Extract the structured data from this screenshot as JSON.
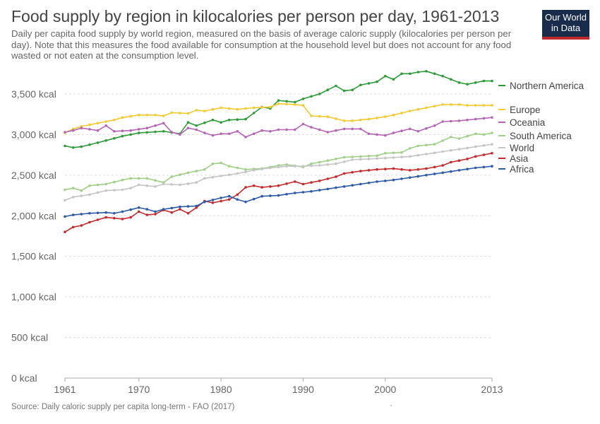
{
  "title": "Food supply by region in kilocalories per person per day, 1961-2013",
  "subtitle": "Daily per capita food supply by world region, measured on the basis of average caloric supply (kilocalories per person per day). Note that this measures the food available for consumption at the household level but does not account for any food wasted or not eaten at the consumption level.",
  "logo": {
    "line1": "Our World",
    "line2": "in Data"
  },
  "source": "Source: Daily caloric supply per capita long-term - FAO (2017)",
  "dot_note": "·",
  "chart_data": {
    "type": "line",
    "xlim": [
      1961,
      2013
    ],
    "ylim": [
      0,
      3700
    ],
    "x_ticks": [
      1961,
      1970,
      1980,
      1990,
      2000,
      2013
    ],
    "y_ticks": [
      0,
      500,
      1000,
      1500,
      2000,
      2500,
      3000,
      3500
    ],
    "y_tick_labels": [
      "0 kcal",
      "500 kcal",
      "1,000 kcal",
      "1,500 kcal",
      "2,000 kcal",
      "2,500 kcal",
      "3,000 kcal",
      "3,500 kcal"
    ],
    "grid": "horizontal dashed",
    "legend": "right, labels at line ends",
    "series": [
      {
        "name": "Northern America",
        "color": "#2e9a3a",
        "keypoints": [
          [
            1961,
            2860
          ],
          [
            1962,
            2840
          ],
          [
            1963,
            2850
          ],
          [
            1965,
            2900
          ],
          [
            1968,
            2980
          ],
          [
            1970,
            3020
          ],
          [
            1973,
            3040
          ],
          [
            1975,
            3010
          ],
          [
            1976,
            3150
          ],
          [
            1977,
            3110
          ],
          [
            1979,
            3180
          ],
          [
            1980,
            3150
          ],
          [
            1981,
            3180
          ],
          [
            1983,
            3190
          ],
          [
            1985,
            3340
          ],
          [
            1986,
            3320
          ],
          [
            1987,
            3420
          ],
          [
            1989,
            3400
          ],
          [
            1990,
            3440
          ],
          [
            1992,
            3500
          ],
          [
            1994,
            3600
          ],
          [
            1995,
            3540
          ],
          [
            1996,
            3550
          ],
          [
            1997,
            3610
          ],
          [
            1999,
            3650
          ],
          [
            2000,
            3720
          ],
          [
            2001,
            3680
          ],
          [
            2002,
            3750
          ],
          [
            2003,
            3750
          ],
          [
            2004,
            3770
          ],
          [
            2005,
            3780
          ],
          [
            2006,
            3750
          ],
          [
            2007,
            3720
          ],
          [
            2009,
            3640
          ],
          [
            2010,
            3620
          ],
          [
            2012,
            3660
          ],
          [
            2013,
            3660
          ]
        ]
      },
      {
        "name": "Europe",
        "color": "#f2cb32",
        "keypoints": [
          [
            1961,
            3020
          ],
          [
            1962,
            3070
          ],
          [
            1963,
            3100
          ],
          [
            1965,
            3140
          ],
          [
            1967,
            3180
          ],
          [
            1968,
            3210
          ],
          [
            1970,
            3240
          ],
          [
            1972,
            3240
          ],
          [
            1973,
            3230
          ],
          [
            1974,
            3270
          ],
          [
            1976,
            3260
          ],
          [
            1977,
            3300
          ],
          [
            1978,
            3290
          ],
          [
            1980,
            3330
          ],
          [
            1982,
            3310
          ],
          [
            1984,
            3330
          ],
          [
            1986,
            3340
          ],
          [
            1987,
            3380
          ],
          [
            1989,
            3370
          ],
          [
            1990,
            3360
          ],
          [
            1991,
            3230
          ],
          [
            1993,
            3220
          ],
          [
            1995,
            3170
          ],
          [
            1996,
            3170
          ],
          [
            1998,
            3190
          ],
          [
            2000,
            3220
          ],
          [
            2001,
            3240
          ],
          [
            2003,
            3290
          ],
          [
            2005,
            3330
          ],
          [
            2007,
            3370
          ],
          [
            2009,
            3370
          ],
          [
            2010,
            3360
          ],
          [
            2013,
            3360
          ]
        ]
      },
      {
        "name": "Oceania",
        "color": "#b466b4",
        "keypoints": [
          [
            1961,
            3030
          ],
          [
            1962,
            3050
          ],
          [
            1963,
            3080
          ],
          [
            1965,
            3050
          ],
          [
            1966,
            3110
          ],
          [
            1967,
            3040
          ],
          [
            1969,
            3050
          ],
          [
            1971,
            3080
          ],
          [
            1973,
            3140
          ],
          [
            1974,
            3030
          ],
          [
            1975,
            3000
          ],
          [
            1976,
            3080
          ],
          [
            1977,
            3060
          ],
          [
            1978,
            3020
          ],
          [
            1979,
            2990
          ],
          [
            1980,
            3010
          ],
          [
            1981,
            3010
          ],
          [
            1982,
            3040
          ],
          [
            1983,
            2970
          ],
          [
            1985,
            3050
          ],
          [
            1986,
            3040
          ],
          [
            1987,
            3060
          ],
          [
            1989,
            3060
          ],
          [
            1990,
            3130
          ],
          [
            1991,
            3090
          ],
          [
            1993,
            3030
          ],
          [
            1995,
            3070
          ],
          [
            1997,
            3070
          ],
          [
            1998,
            3010
          ],
          [
            2000,
            2990
          ],
          [
            2001,
            3020
          ],
          [
            2003,
            3070
          ],
          [
            2004,
            3040
          ],
          [
            2006,
            3110
          ],
          [
            2007,
            3160
          ],
          [
            2009,
            3170
          ],
          [
            2011,
            3190
          ],
          [
            2013,
            3210
          ]
        ]
      },
      {
        "name": "South America",
        "color": "#a2d08a",
        "keypoints": [
          [
            1961,
            2320
          ],
          [
            1962,
            2340
          ],
          [
            1963,
            2310
          ],
          [
            1964,
            2370
          ],
          [
            1966,
            2390
          ],
          [
            1968,
            2440
          ],
          [
            1969,
            2460
          ],
          [
            1971,
            2460
          ],
          [
            1973,
            2410
          ],
          [
            1974,
            2480
          ],
          [
            1976,
            2530
          ],
          [
            1978,
            2570
          ],
          [
            1979,
            2640
          ],
          [
            1980,
            2650
          ],
          [
            1981,
            2610
          ],
          [
            1982,
            2590
          ],
          [
            1983,
            2570
          ],
          [
            1985,
            2580
          ],
          [
            1987,
            2620
          ],
          [
            1988,
            2630
          ],
          [
            1990,
            2600
          ],
          [
            1991,
            2640
          ],
          [
            1993,
            2680
          ],
          [
            1995,
            2720
          ],
          [
            1997,
            2730
          ],
          [
            1999,
            2740
          ],
          [
            2000,
            2770
          ],
          [
            2002,
            2780
          ],
          [
            2003,
            2830
          ],
          [
            2004,
            2860
          ],
          [
            2006,
            2880
          ],
          [
            2008,
            2970
          ],
          [
            2009,
            2950
          ],
          [
            2011,
            3010
          ],
          [
            2012,
            3000
          ],
          [
            2013,
            3020
          ]
        ]
      },
      {
        "name": "World",
        "color": "#c6c6c6",
        "keypoints": [
          [
            1961,
            2190
          ],
          [
            1962,
            2230
          ],
          [
            1964,
            2260
          ],
          [
            1966,
            2310
          ],
          [
            1968,
            2320
          ],
          [
            1969,
            2340
          ],
          [
            1970,
            2380
          ],
          [
            1972,
            2360
          ],
          [
            1973,
            2390
          ],
          [
            1975,
            2380
          ],
          [
            1977,
            2410
          ],
          [
            1978,
            2460
          ],
          [
            1980,
            2490
          ],
          [
            1982,
            2520
          ],
          [
            1984,
            2560
          ],
          [
            1986,
            2590
          ],
          [
            1988,
            2610
          ],
          [
            1990,
            2610
          ],
          [
            1992,
            2620
          ],
          [
            1994,
            2640
          ],
          [
            1996,
            2690
          ],
          [
            1998,
            2700
          ],
          [
            2000,
            2710
          ],
          [
            2003,
            2730
          ],
          [
            2005,
            2760
          ],
          [
            2007,
            2790
          ],
          [
            2009,
            2820
          ],
          [
            2011,
            2850
          ],
          [
            2013,
            2880
          ]
        ]
      },
      {
        "name": "Asia",
        "color": "#c62a2e",
        "keypoints": [
          [
            1961,
            1800
          ],
          [
            1962,
            1860
          ],
          [
            1963,
            1880
          ],
          [
            1964,
            1920
          ],
          [
            1966,
            1980
          ],
          [
            1968,
            1960
          ],
          [
            1969,
            1980
          ],
          [
            1970,
            2050
          ],
          [
            1971,
            2010
          ],
          [
            1972,
            2020
          ],
          [
            1973,
            2070
          ],
          [
            1974,
            2040
          ],
          [
            1975,
            2080
          ],
          [
            1976,
            2030
          ],
          [
            1977,
            2100
          ],
          [
            1978,
            2180
          ],
          [
            1979,
            2160
          ],
          [
            1981,
            2200
          ],
          [
            1982,
            2260
          ],
          [
            1983,
            2350
          ],
          [
            1984,
            2370
          ],
          [
            1985,
            2350
          ],
          [
            1987,
            2370
          ],
          [
            1989,
            2420
          ],
          [
            1990,
            2390
          ],
          [
            1992,
            2430
          ],
          [
            1994,
            2480
          ],
          [
            1995,
            2520
          ],
          [
            1997,
            2550
          ],
          [
            1999,
            2570
          ],
          [
            2001,
            2580
          ],
          [
            2003,
            2560
          ],
          [
            2005,
            2580
          ],
          [
            2007,
            2620
          ],
          [
            2008,
            2660
          ],
          [
            2010,
            2700
          ],
          [
            2011,
            2730
          ],
          [
            2013,
            2770
          ]
        ]
      },
      {
        "name": "Africa",
        "color": "#2e5aa8",
        "keypoints": [
          [
            1961,
            1990
          ],
          [
            1962,
            2010
          ],
          [
            1964,
            2030
          ],
          [
            1966,
            2040
          ],
          [
            1967,
            2030
          ],
          [
            1968,
            2050
          ],
          [
            1970,
            2100
          ],
          [
            1971,
            2080
          ],
          [
            1972,
            2050
          ],
          [
            1973,
            2080
          ],
          [
            1975,
            2110
          ],
          [
            1977,
            2120
          ],
          [
            1978,
            2170
          ],
          [
            1980,
            2220
          ],
          [
            1981,
            2240
          ],
          [
            1982,
            2200
          ],
          [
            1983,
            2170
          ],
          [
            1985,
            2240
          ],
          [
            1987,
            2250
          ],
          [
            1989,
            2280
          ],
          [
            1991,
            2300
          ],
          [
            1993,
            2330
          ],
          [
            1995,
            2360
          ],
          [
            1997,
            2390
          ],
          [
            1999,
            2420
          ],
          [
            2001,
            2440
          ],
          [
            2003,
            2470
          ],
          [
            2005,
            2500
          ],
          [
            2007,
            2530
          ],
          [
            2009,
            2560
          ],
          [
            2011,
            2590
          ],
          [
            2013,
            2610
          ]
        ]
      }
    ]
  }
}
